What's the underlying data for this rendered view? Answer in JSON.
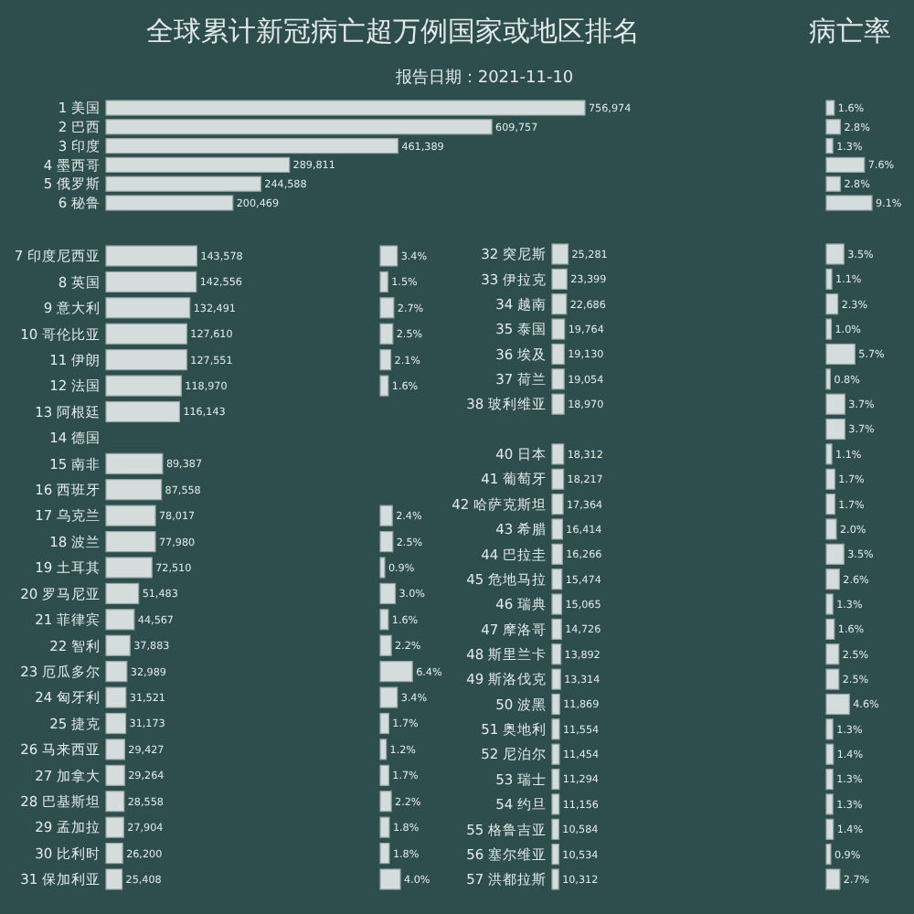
{
  "chart_data": [
    {
      "type": "bar",
      "orientation": "horizontal",
      "title": "全球累计新冠病亡超万例国家或地区排名",
      "subtitle": "报告日期：2021-11-10",
      "color": "#d5dddc",
      "categories": [
        "1 美国",
        "2 巴西",
        "3 印度",
        "4 墨西哥",
        "5 俄罗斯",
        "6 秘鲁"
      ],
      "values": [
        756974,
        609757,
        461389,
        289811,
        244588,
        200469
      ],
      "value_labels": [
        "756,974",
        "609,757",
        "461,389",
        "289,811",
        "244,588",
        "200,469"
      ]
    },
    {
      "type": "bar",
      "orientation": "horizontal",
      "title": "病亡率",
      "color": "#d5dddc",
      "categories": [
        null,
        null,
        null,
        null,
        null,
        null
      ],
      "values": [
        1.6,
        2.8,
        1.3,
        7.6,
        2.8,
        9.1
      ],
      "value_labels": [
        "1.6%",
        "2.8%",
        "1.3%",
        "7.6%",
        "2.8%",
        "9.1%"
      ]
    },
    {
      "type": "bar",
      "orientation": "horizontal",
      "color": "#d5dddc",
      "categories": [
        "7 印度尼西亚",
        "8 英国",
        "9 意大利",
        "10 哥伦比亚",
        "11 伊朗",
        "12 法国",
        "13 阿根廷",
        "14 德国",
        "15 南非",
        "16 西班牙",
        "17 乌克兰",
        "18 波兰",
        "19 土耳其",
        "20 罗马尼亚",
        "21 菲律宾",
        "22 智利",
        "23 厄瓜多尔",
        "24 匈牙利",
        "25 捷克",
        "26 马来西亚",
        "27 加拿大",
        "28 巴基斯坦",
        "29 孟加拉",
        "30 比利时",
        "31 保加利亚"
      ],
      "values": [
        143578,
        142556,
        132491,
        127610,
        127551,
        118970,
        116143,
        null,
        89387,
        87558,
        78017,
        77980,
        72510,
        51483,
        44567,
        37883,
        32989,
        31521,
        31173,
        29427,
        29264,
        28558,
        27904,
        26200,
        25408
      ],
      "value_labels": [
        "143,578",
        "142,556",
        "132,491",
        "127,610",
        "127,551",
        "118,970",
        "116,143",
        null,
        "89,387",
        "87,558",
        "78,017",
        "77,980",
        "72,510",
        "51,483",
        "44,567",
        "37,883",
        "32,989",
        "31,521",
        "31,173",
        "29,427",
        "29,264",
        "28,558",
        "27,904",
        "26,200",
        "25,408"
      ]
    },
    {
      "type": "bar",
      "orientation": "horizontal",
      "color": "#d5dddc",
      "categories": [
        null,
        null,
        null,
        null,
        null,
        null,
        null,
        null,
        null,
        null,
        null,
        null,
        null,
        null,
        null,
        null,
        null,
        null,
        null,
        null,
        null,
        null,
        null,
        null,
        null
      ],
      "values": [
        3.4,
        1.5,
        2.7,
        2.5,
        2.1,
        1.6,
        null,
        null,
        null,
        null,
        2.4,
        2.5,
        0.9,
        3.0,
        1.6,
        2.2,
        6.4,
        3.4,
        1.7,
        1.2,
        1.7,
        2.2,
        1.8,
        1.8,
        4.0
      ],
      "value_labels": [
        "3.4%",
        "1.5%",
        "2.7%",
        "2.5%",
        "2.1%",
        "1.6%",
        null,
        null,
        null,
        null,
        "2.4%",
        "2.5%",
        "0.9%",
        "3.0%",
        "1.6%",
        "2.2%",
        "6.4%",
        "3.4%",
        "1.7%",
        "1.2%",
        "1.7%",
        "2.2%",
        "1.8%",
        "1.8%",
        "4.0%"
      ]
    },
    {
      "type": "bar",
      "orientation": "horizontal",
      "color": "#d5dddc",
      "categories": [
        "32 突尼斯",
        "33 伊拉克",
        "34 越南",
        "35 泰国",
        "36 埃及",
        "37 荷兰",
        "38 玻利维亚",
        null,
        "40 日本",
        "41 葡萄牙",
        "42 哈萨克斯坦",
        "43 希腊",
        "44 巴拉圭",
        "45 危地马拉",
        "46 瑞典",
        "47 摩洛哥",
        "48 斯里兰卡",
        "49 斯洛伐克",
        "50 波黑",
        "51 奥地利",
        "52 尼泊尔",
        "53 瑞士",
        "54 约旦",
        "55 格鲁吉亚",
        "56 塞尔维亚",
        "57 洪都拉斯"
      ],
      "values": [
        25281,
        23399,
        22686,
        19764,
        19130,
        19054,
        18970,
        null,
        18312,
        18217,
        17364,
        16414,
        16266,
        15474,
        15065,
        14726,
        13892,
        13314,
        11869,
        11554,
        11454,
        11294,
        11156,
        10584,
        10534,
        10312
      ],
      "value_labels": [
        "25,281",
        "23,399",
        "22,686",
        "19,764",
        "19,130",
        "19,054",
        "18,970",
        null,
        "18,312",
        "18,217",
        "17,364",
        "16,414",
        "16,266",
        "15,474",
        "15,065",
        "14,726",
        "13,892",
        "13,314",
        "11,869",
        "11,554",
        "11,454",
        "11,294",
        "11,156",
        "10,584",
        "10,534",
        "10,312"
      ]
    },
    {
      "type": "bar",
      "orientation": "horizontal",
      "color": "#d5dddc",
      "categories": [
        null,
        null,
        null,
        null,
        null,
        null,
        null,
        null,
        null,
        null,
        null,
        null,
        null,
        null,
        null,
        null,
        null,
        null,
        null,
        null,
        null,
        null,
        null,
        null,
        null,
        null
      ],
      "values": [
        3.5,
        1.1,
        2.3,
        1.0,
        5.7,
        0.8,
        3.7,
        3.7,
        1.1,
        1.7,
        1.7,
        2.0,
        3.5,
        2.6,
        1.3,
        1.6,
        2.5,
        2.5,
        4.6,
        1.3,
        1.4,
        1.3,
        1.3,
        1.4,
        0.9,
        2.7
      ],
      "value_labels": [
        "3.5%",
        "1.1%",
        "2.3%",
        "1.0%",
        "5.7%",
        "0.8%",
        "3.7%",
        "3.7%",
        "1.1%",
        "1.7%",
        "1.7%",
        "2.0%",
        "3.5%",
        "2.6%",
        "1.3%",
        "1.6%",
        "2.5%",
        "2.5%",
        "4.6%",
        "1.3%",
        "1.4%",
        "1.3%",
        "1.3%",
        "1.4%",
        "0.9%",
        "2.7%"
      ]
    }
  ]
}
